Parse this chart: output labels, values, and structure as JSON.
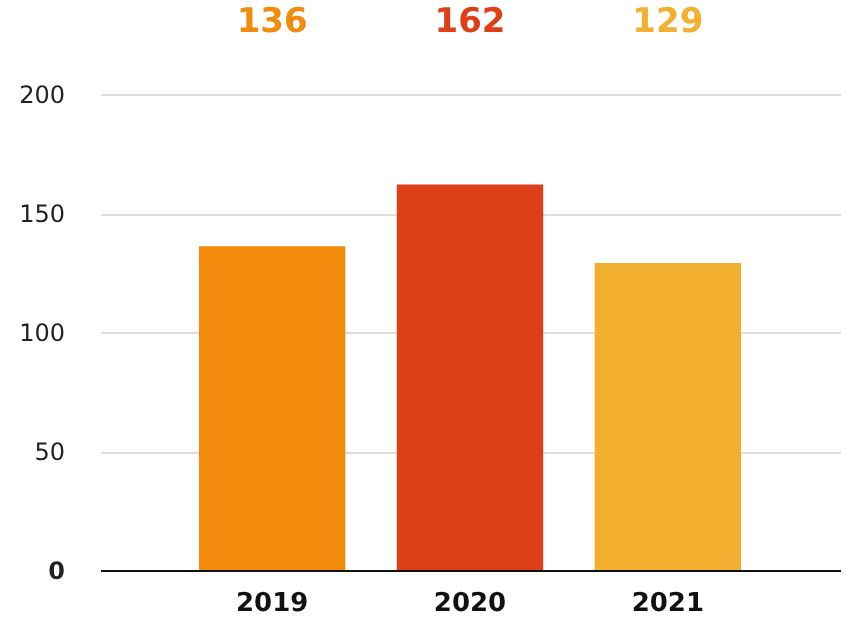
{
  "chart_data": {
    "type": "bar",
    "categories": [
      "2019",
      "2020",
      "2021"
    ],
    "values": [
      136,
      162,
      129
    ],
    "colors": [
      "#f28a0c",
      "#dd3f17",
      "#f3b030"
    ],
    "ylim": [
      0,
      200
    ],
    "yticks": [
      0,
      50,
      100,
      150,
      200
    ],
    "grid": "y",
    "data_labels": true
  }
}
